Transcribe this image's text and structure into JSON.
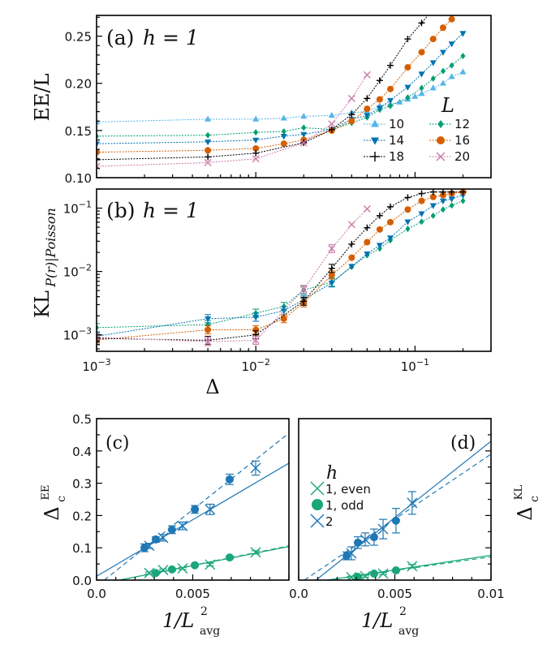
{
  "chart_data": [
    {
      "id": "a",
      "type": "line",
      "panel_label": "(a)",
      "annotation": "h = 1",
      "xlabel": "",
      "ylabel": "EE/L",
      "xscale": "log",
      "xlim": [
        0.001,
        0.3
      ],
      "ylim": [
        0.1,
        0.272
      ],
      "yticks": [
        0.1,
        0.15,
        0.2,
        0.25
      ],
      "ytick_labels": [
        "0.10",
        "0.15",
        "0.20",
        "0.25"
      ],
      "xticks_major": [
        0.001,
        0.01,
        0.1
      ],
      "legend": {
        "title": "L",
        "placement": "center-right",
        "columns": 2
      },
      "series": [
        {
          "name": "10",
          "color": "#56B4E9",
          "marker": "triangle-up",
          "x": [
            0.001,
            0.005,
            0.01,
            0.015,
            0.02,
            0.03,
            0.04,
            0.05,
            0.06,
            0.07,
            0.08,
            0.09,
            0.1,
            0.11,
            0.13,
            0.15,
            0.17,
            0.2
          ],
          "y": [
            0.159,
            0.162,
            0.162,
            0.163,
            0.165,
            0.166,
            0.169,
            0.17,
            0.176,
            0.178,
            0.18,
            0.183,
            0.186,
            0.189,
            0.195,
            0.2,
            0.207,
            0.212
          ]
        },
        {
          "name": "12",
          "color": "#009E73",
          "marker": "diamond",
          "x": [
            0.001,
            0.005,
            0.01,
            0.015,
            0.02,
            0.03,
            0.04,
            0.05,
            0.06,
            0.07,
            0.09,
            0.11,
            0.13,
            0.15,
            0.17,
            0.2
          ],
          "y": [
            0.144,
            0.145,
            0.148,
            0.149,
            0.153,
            0.151,
            0.158,
            0.164,
            0.172,
            0.176,
            0.185,
            0.195,
            0.205,
            0.213,
            0.219,
            0.229
          ]
        },
        {
          "name": "14",
          "color": "#0072B2",
          "marker": "triangle-down",
          "x": [
            0.001,
            0.005,
            0.01,
            0.015,
            0.02,
            0.03,
            0.04,
            0.05,
            0.06,
            0.07,
            0.09,
            0.11,
            0.13,
            0.15,
            0.17,
            0.2
          ],
          "y": [
            0.136,
            0.138,
            0.14,
            0.144,
            0.146,
            0.151,
            0.162,
            0.166,
            0.174,
            0.182,
            0.196,
            0.21,
            0.222,
            0.233,
            0.242,
            0.253
          ]
        },
        {
          "name": "16",
          "color": "#D55E00",
          "marker": "circle",
          "x": [
            0.001,
            0.005,
            0.01,
            0.015,
            0.02,
            0.03,
            0.04,
            0.05,
            0.06,
            0.07,
            0.09,
            0.11,
            0.13,
            0.15,
            0.17
          ],
          "y": [
            0.127,
            0.129,
            0.131,
            0.136,
            0.14,
            0.15,
            0.16,
            0.173,
            0.183,
            0.194,
            0.217,
            0.233,
            0.247,
            0.259,
            0.268
          ]
        },
        {
          "name": "18",
          "color": "#000000",
          "marker": "plus",
          "x": [
            0.001,
            0.005,
            0.01,
            0.02,
            0.03,
            0.04,
            0.05,
            0.06,
            0.07,
            0.09,
            0.11,
            0.125
          ],
          "y": [
            0.119,
            0.122,
            0.126,
            0.137,
            0.151,
            0.167,
            0.184,
            0.203,
            0.219,
            0.247,
            0.264,
            0.275
          ]
        },
        {
          "name": "20",
          "color": "#CC79A7",
          "marker": "x",
          "x": [
            0.001,
            0.005,
            0.01,
            0.02,
            0.03,
            0.04,
            0.05
          ],
          "y": [
            0.112,
            0.116,
            0.12,
            0.137,
            0.157,
            0.184,
            0.209
          ]
        }
      ]
    },
    {
      "id": "b",
      "type": "line",
      "panel_label": "(b)",
      "annotation": "h = 1",
      "xlabel": "Δ",
      "ylabel": "KL_{P(r)|Poisson}",
      "xscale": "log",
      "yscale": "log",
      "xlim": [
        0.001,
        0.3
      ],
      "ylim": [
        0.00055,
        0.2
      ],
      "yticks": [
        0.001,
        0.01,
        0.1
      ],
      "ytick_labels": [
        "10^-3",
        "10^-2",
        "10^-1"
      ],
      "xticks_major": [
        0.001,
        0.01,
        0.1
      ],
      "xtick_labels": [
        "10^-3",
        "10^-2",
        "10^-1"
      ],
      "series": [
        {
          "name": "12",
          "color": "#009E73",
          "marker": "diamond",
          "x": [
            0.001,
            0.005,
            0.01,
            0.015,
            0.02,
            0.03,
            0.04,
            0.05,
            0.06,
            0.07,
            0.09,
            0.11,
            0.13,
            0.15,
            0.17,
            0.2
          ],
          "y": [
            0.0013,
            0.00145,
            0.0022,
            0.0028,
            0.0051,
            0.0068,
            0.0118,
            0.018,
            0.023,
            0.031,
            0.047,
            0.061,
            0.076,
            0.095,
            0.11,
            0.13
          ]
        },
        {
          "name": "14",
          "color": "#0072B2",
          "marker": "triangle-down",
          "x": [
            0.001,
            0.005,
            0.01,
            0.015,
            0.02,
            0.03,
            0.04,
            0.05,
            0.06,
            0.07,
            0.09,
            0.11,
            0.13,
            0.15,
            0.17,
            0.2
          ],
          "y": [
            0.00095,
            0.0018,
            0.0019,
            0.0024,
            0.0036,
            0.0066,
            0.0121,
            0.019,
            0.026,
            0.034,
            0.061,
            0.082,
            0.11,
            0.13,
            0.14,
            0.16
          ]
        },
        {
          "name": "16",
          "color": "#D55E00",
          "marker": "circle",
          "x": [
            0.001,
            0.005,
            0.01,
            0.015,
            0.02,
            0.03,
            0.04,
            0.05,
            0.06,
            0.07,
            0.09,
            0.11,
            0.13,
            0.15,
            0.17,
            0.2
          ],
          "y": [
            0.00083,
            0.0012,
            0.0012,
            0.0018,
            0.0032,
            0.0088,
            0.0165,
            0.029,
            0.046,
            0.06,
            0.095,
            0.13,
            0.15,
            0.16,
            0.17,
            0.18
          ]
        },
        {
          "name": "18",
          "color": "#000000",
          "marker": "plus",
          "x": [
            0.001,
            0.005,
            0.01,
            0.02,
            0.03,
            0.04,
            0.05,
            0.06,
            0.07,
            0.09,
            0.11,
            0.13,
            0.15,
            0.17,
            0.2
          ],
          "y": [
            0.00088,
            0.00082,
            0.001,
            0.0034,
            0.0112,
            0.027,
            0.049,
            0.076,
            0.105,
            0.147,
            0.17,
            0.18,
            0.18,
            0.18,
            0.18
          ]
        },
        {
          "name": "20",
          "color": "#CC79A7",
          "marker": "x",
          "x": [
            0.001,
            0.005,
            0.01,
            0.02,
            0.03,
            0.04,
            0.05
          ],
          "y": [
            0.00092,
            0.00078,
            0.00082,
            0.0052,
            0.023,
            0.055,
            0.097
          ]
        }
      ]
    },
    {
      "id": "c",
      "type": "scatter",
      "panel_label": "(c)",
      "xlabel": "1/L_avg^2",
      "ylabel": "Δ_c^EE",
      "xlim": [
        0,
        0.01
      ],
      "ylim": [
        0,
        0.5
      ],
      "xticks": [
        0,
        0.005,
        0.01
      ],
      "xtick_labels": [
        "0.0",
        "0.005",
        ""
      ],
      "yticks": [
        0,
        0.1,
        0.2,
        0.3,
        0.4,
        0.5
      ],
      "ytick_labels": [
        "0.0",
        "0.1",
        "0.2",
        "0.3",
        "0.4",
        "0.5"
      ],
      "series": [
        {
          "name": "1, even",
          "color": "#1AA57A",
          "marker": "x",
          "x": [
            0.00274,
            0.00346,
            0.00447,
            0.0059,
            0.00827
          ],
          "y": [
            0.022,
            0.031,
            0.036,
            0.048,
            0.086
          ],
          "err": [
            0.003,
            0.003,
            0.003,
            0.004,
            0.005
          ]
        },
        {
          "name": "1, odd",
          "color": "#1AA57A",
          "marker": "circle",
          "x": [
            0.00308,
            0.00392,
            0.00511,
            0.00692
          ],
          "y": [
            0.022,
            0.033,
            0.046,
            0.07
          ],
          "err": [
            0.003,
            0.003,
            0.003,
            0.004
          ]
        },
        {
          "name": "2, even",
          "color": "#1F77B4",
          "marker": "x",
          "x": [
            0.00274,
            0.00346,
            0.00447,
            0.0059,
            0.00827
          ],
          "y": [
            0.106,
            0.131,
            0.168,
            0.219,
            0.347
          ],
          "err": [
            0.008,
            0.01,
            0.012,
            0.016,
            0.022
          ]
        },
        {
          "name": "2, odd",
          "color": "#1F77B4",
          "marker": "circle",
          "x": [
            0.00249,
            0.00308,
            0.00392,
            0.00511,
            0.00692
          ],
          "y": [
            0.1,
            0.126,
            0.156,
            0.219,
            0.312
          ],
          "err": [
            0.012,
            0.008,
            0.012,
            0.012,
            0.016
          ]
        }
      ],
      "fits": [
        {
          "color": "#1F77B4",
          "style": "solid",
          "x": [
            0,
            0.01
          ],
          "y": [
            0.012,
            0.362
          ]
        },
        {
          "color": "#1F77B4",
          "style": "dashed",
          "x": [
            0.0004,
            0.01
          ],
          "y": [
            0,
            0.455
          ]
        },
        {
          "color": "#1AA57A",
          "style": "solid",
          "x": [
            0.0012,
            0.01
          ],
          "y": [
            0,
            0.104
          ]
        },
        {
          "color": "#1AA57A",
          "style": "dashed",
          "x": [
            0.0012,
            0.01
          ],
          "y": [
            0,
            0.106
          ]
        }
      ]
    },
    {
      "id": "d",
      "type": "scatter",
      "panel_label": "(d)",
      "xlabel": "1/L_avg^2",
      "ylabel": "Δ_c^KL",
      "xlim": [
        0,
        0.01
      ],
      "ylim": [
        0,
        0.5
      ],
      "xticks": [
        0,
        0.005,
        0.01
      ],
      "xtick_labels": [
        "0.0",
        "0.005",
        "0.01"
      ],
      "legend": {
        "title": "h",
        "placement": "upper-left",
        "entries": [
          "1, even",
          "1, odd",
          "2"
        ]
      },
      "series": [
        {
          "name": "1, even",
          "color": "#1AA57A",
          "marker": "x",
          "x": [
            0.00274,
            0.00346,
            0.00439,
            0.0059
          ],
          "y": [
            0.009,
            0.012,
            0.02,
            0.043
          ],
          "err": [
            0.003,
            0.003,
            0.003,
            0.005
          ]
        },
        {
          "name": "1, odd",
          "color": "#1AA57A",
          "marker": "circle",
          "x": [
            0.00308,
            0.00392,
            0.00506
          ],
          "y": [
            0.01,
            0.02,
            0.03
          ],
          "err": [
            0.002,
            0.002,
            0.003
          ]
        },
        {
          "name": "2, even",
          "color": "#1F77B4",
          "marker": "x",
          "x": [
            0.00274,
            0.00346,
            0.00439,
            0.0059
          ],
          "y": [
            0.083,
            0.126,
            0.158,
            0.239
          ],
          "err": [
            0.02,
            0.02,
            0.03,
            0.035
          ]
        },
        {
          "name": "2, odd",
          "color": "#1F77B4",
          "marker": "circle",
          "x": [
            0.00249,
            0.00308,
            0.00392,
            0.00506
          ],
          "y": [
            0.075,
            0.116,
            0.133,
            0.184
          ],
          "err": [
            0.012,
            0.018,
            0.025,
            0.038
          ]
        }
      ],
      "fits": [
        {
          "color": "#1F77B4",
          "style": "solid",
          "x": [
            0.0009,
            0.01
          ],
          "y": [
            0,
            0.43
          ]
        },
        {
          "color": "#1F77B4",
          "style": "dashed",
          "x": [
            0.0003,
            0.01
          ],
          "y": [
            0,
            0.39
          ]
        },
        {
          "color": "#1AA57A",
          "style": "solid",
          "x": [
            0.0015,
            0.01
          ],
          "y": [
            0,
            0.077
          ]
        },
        {
          "color": "#1AA57A",
          "style": "dashed",
          "x": [
            0.0015,
            0.01
          ],
          "y": [
            0,
            0.072
          ]
        }
      ]
    }
  ],
  "labels": {
    "a_panel": "(a)",
    "b_panel": "(b)",
    "c_panel": "(c)",
    "d_panel": "(d)",
    "h_eq": "h = 1",
    "a_ylabel": "EE/L",
    "b_ylabel_main": "KL",
    "b_ylabel_sub": "P(r)|Poisson",
    "delta_xlabel": "Δ",
    "cd_xlabel_main": "1/L",
    "cd_xlabel_sup": "2",
    "cd_xlabel_sub": "avg",
    "c_ylabel_main": "Δ",
    "c_ylabel_sup": "EE",
    "c_ylabel_sub": "c",
    "d_ylabel_sup": "KL",
    "legend_a_title": "L",
    "legend_d_title": "h"
  }
}
